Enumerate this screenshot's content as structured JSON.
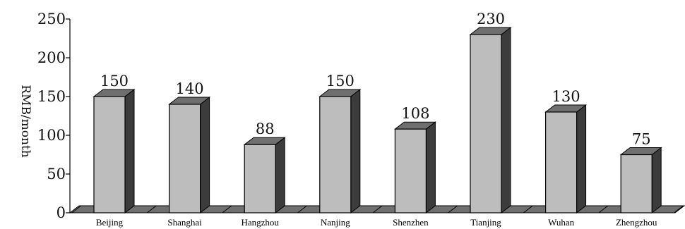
{
  "chart_data": {
    "type": "bar",
    "style": "3d-column",
    "ylabel": "RMB/month",
    "ylim": [
      0,
      250
    ],
    "ytick_labels": [
      "0",
      "50",
      "100",
      "150",
      "200",
      "250"
    ],
    "ytick_values": [
      0,
      50,
      100,
      150,
      200,
      250
    ],
    "categories": [
      "Beijing",
      "Shanghai",
      "Hangzhou",
      "Nanjing",
      "Shenzhen",
      "Tianjing",
      "Wuhan",
      "Zhengzhou"
    ],
    "values": [
      150,
      140,
      88,
      150,
      108,
      230,
      130,
      75
    ],
    "value_labels": [
      "150",
      "140",
      "88",
      "150",
      "108",
      "230",
      "130",
      "75"
    ],
    "grid": false,
    "legend": "none",
    "colors": {
      "bar_front": "#bdbdbd",
      "bar_side": "#3c3c3c",
      "bar_top": "#6f6f6f",
      "floor": "#707070",
      "outline": "#000000"
    }
  }
}
